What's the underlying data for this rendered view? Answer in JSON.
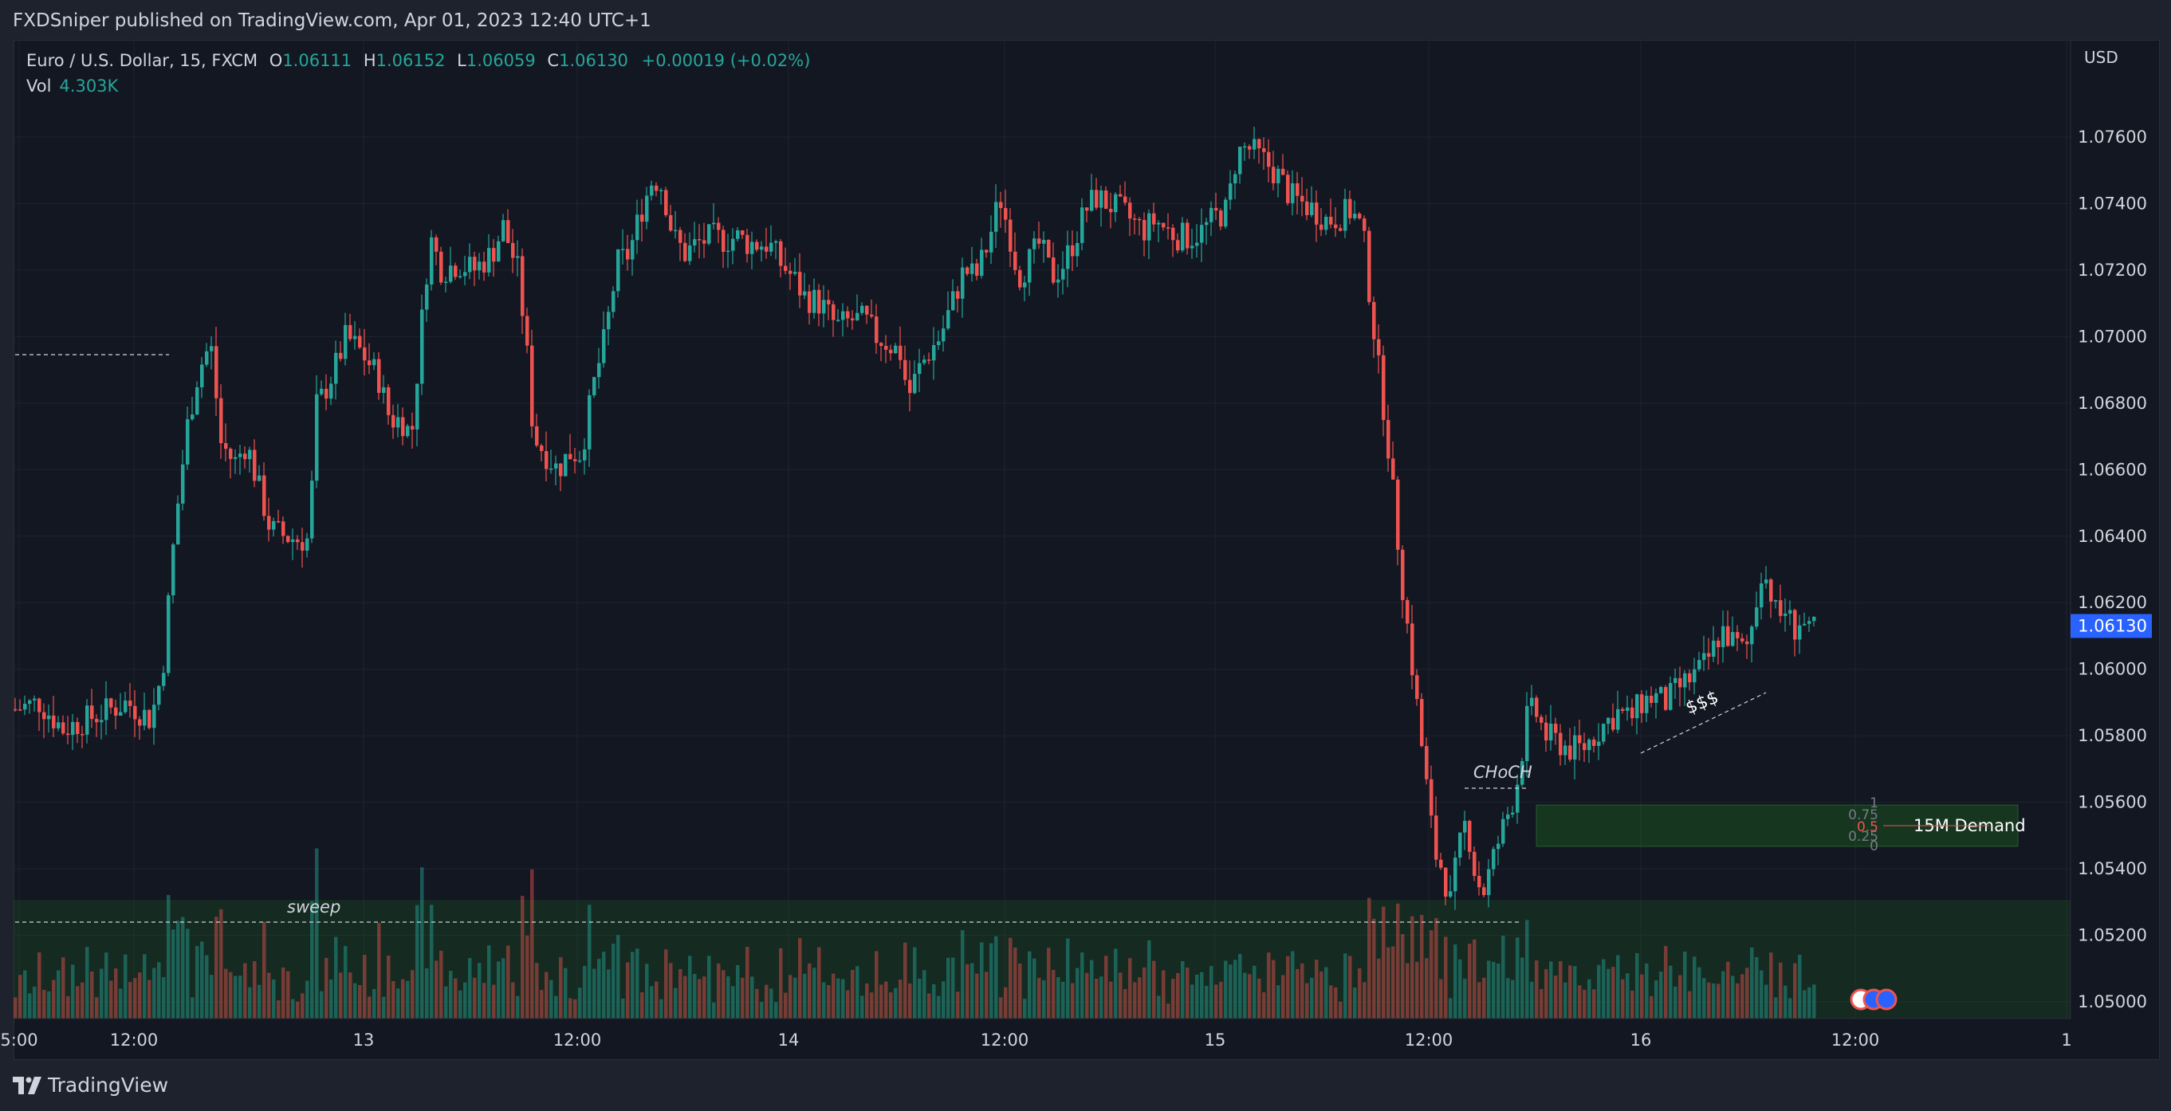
{
  "header": {
    "publish_text": "FXDSniper published on TradingView.com, Apr 01, 2023 12:40 UTC+1"
  },
  "legend": {
    "symbol": "Euro / U.S. Dollar, 15, FXCM",
    "open_label": "O",
    "open": "1.06111",
    "high_label": "H",
    "high": "1.06152",
    "low_label": "L",
    "low": "1.06059",
    "close_label": "C",
    "close": "1.06130",
    "change": "+0.00019 (+0.02%)",
    "vol_label": "Vol",
    "vol": "4.303K"
  },
  "price_axis": {
    "currency": "USD",
    "current_price": "1.06130"
  },
  "footer": {
    "logo_text": "TradingView"
  },
  "colors": {
    "background": "#131722",
    "up": "#26a69a",
    "down": "#ef5350",
    "price_tag": "#2962ff",
    "zone": "#1b5e20"
  },
  "chart_data": {
    "type": "candlestick",
    "symbol": "EUR/USD",
    "timeframe": "15",
    "ylim": [
      1.0492,
      1.0776
    ],
    "y_ticks": [
      "1.07600",
      "1.07400",
      "1.07200",
      "1.07000",
      "1.06800",
      "1.06600",
      "1.06400",
      "1.06200",
      "1.06000",
      "1.05800",
      "1.05600",
      "1.05400",
      "1.05200",
      "1.05000"
    ],
    "x_ticks": [
      "5:00",
      "12:00",
      "13",
      "12:00",
      "14",
      "12:00",
      "15",
      "12:00",
      "16",
      "12:00",
      "1"
    ],
    "price_path": [
      [
        0,
        1.0588
      ],
      [
        30,
        1.059
      ],
      [
        60,
        1.0582
      ],
      [
        100,
        1.0586
      ],
      [
        140,
        1.059
      ],
      [
        170,
        1.0585
      ],
      [
        185,
        1.06
      ],
      [
        200,
        1.0642
      ],
      [
        215,
        1.0672
      ],
      [
        230,
        1.069
      ],
      [
        245,
        1.0698
      ],
      [
        258,
        1.0668
      ],
      [
        275,
        1.0662
      ],
      [
        290,
        1.0668
      ],
      [
        305,
        1.0655
      ],
      [
        320,
        1.0642
      ],
      [
        338,
        1.064
      ],
      [
        355,
        1.0639
      ],
      [
        370,
        1.0639
      ],
      [
        375,
        1.0678
      ],
      [
        385,
        1.0682
      ],
      [
        400,
        1.069
      ],
      [
        415,
        1.07
      ],
      [
        435,
        1.0695
      ],
      [
        455,
        1.0688
      ],
      [
        470,
        1.0675
      ],
      [
        485,
        1.0675
      ],
      [
        497,
        1.067
      ],
      [
        510,
        1.0705
      ],
      [
        520,
        1.073
      ],
      [
        535,
        1.072
      ],
      [
        555,
        1.0722
      ],
      [
        575,
        1.072
      ],
      [
        598,
        1.0725
      ],
      [
        612,
        1.0733
      ],
      [
        630,
        1.072
      ],
      [
        640,
        1.07
      ],
      [
        650,
        1.067
      ],
      [
        665,
        1.0665
      ],
      [
        680,
        1.066
      ],
      [
        695,
        1.0665
      ],
      [
        710,
        1.0665
      ],
      [
        725,
        1.0685
      ],
      [
        740,
        1.07
      ],
      [
        755,
        1.0722
      ],
      [
        770,
        1.0725
      ],
      [
        785,
        1.0738
      ],
      [
        800,
        1.0748
      ],
      [
        812,
        1.0745
      ],
      [
        825,
        1.073
      ],
      [
        840,
        1.0725
      ],
      [
        855,
        1.0728
      ],
      [
        875,
        1.073
      ],
      [
        890,
        1.0729
      ],
      [
        905,
        1.073
      ],
      [
        920,
        1.0728
      ],
      [
        945,
        1.0728
      ],
      [
        960,
        1.0722
      ],
      [
        975,
        1.0718
      ],
      [
        990,
        1.0712
      ],
      [
        1010,
        1.071
      ],
      [
        1030,
        1.0703
      ],
      [
        1050,
        1.0705
      ],
      [
        1065,
        1.0705
      ],
      [
        1080,
        1.07
      ],
      [
        1095,
        1.0698
      ],
      [
        1110,
        1.0695
      ],
      [
        1120,
        1.0682
      ],
      [
        1133,
        1.069
      ],
      [
        1145,
        1.0695
      ],
      [
        1160,
        1.07
      ],
      [
        1175,
        1.071
      ],
      [
        1190,
        1.072
      ],
      [
        1205,
        1.0718
      ],
      [
        1220,
        1.0728
      ],
      [
        1235,
        1.0742
      ],
      [
        1248,
        1.073
      ],
      [
        1258,
        1.0718
      ],
      [
        1270,
        1.0722
      ],
      [
        1285,
        1.0728
      ],
      [
        1300,
        1.0718
      ],
      [
        1315,
        1.0722
      ],
      [
        1330,
        1.073
      ],
      [
        1342,
        1.0738
      ],
      [
        1355,
        1.0742
      ],
      [
        1370,
        1.074
      ],
      [
        1385,
        1.0738
      ],
      [
        1400,
        1.0735
      ],
      [
        1415,
        1.0732
      ],
      [
        1430,
        1.0735
      ],
      [
        1445,
        1.0732
      ],
      [
        1460,
        1.073
      ],
      [
        1475,
        1.073
      ],
      [
        1490,
        1.0732
      ],
      [
        1505,
        1.0736
      ],
      [
        1520,
        1.0738
      ],
      [
        1532,
        1.0755
      ],
      [
        1545,
        1.0757
      ],
      [
        1555,
        1.0755
      ],
      [
        1570,
        1.0752
      ],
      [
        1585,
        1.0748
      ],
      [
        1600,
        1.0742
      ],
      [
        1615,
        1.074
      ],
      [
        1630,
        1.0738
      ],
      [
        1645,
        1.0735
      ],
      [
        1660,
        1.0736
      ],
      [
        1675,
        1.0738
      ],
      [
        1690,
        1.0732
      ],
      [
        1700,
        1.071
      ],
      [
        1710,
        1.069
      ],
      [
        1720,
        1.0672
      ],
      [
        1730,
        1.0648
      ],
      [
        1740,
        1.0625
      ],
      [
        1750,
        1.0605
      ],
      [
        1760,
        1.0585
      ],
      [
        1770,
        1.0565
      ],
      [
        1780,
        1.0545
      ],
      [
        1790,
        1.054
      ],
      [
        1800,
        1.053
      ],
      [
        1810,
        1.0545
      ],
      [
        1820,
        1.0555
      ],
      [
        1830,
        1.054
      ],
      [
        1840,
        1.0532
      ],
      [
        1850,
        1.054
      ],
      [
        1860,
        1.0548
      ],
      [
        1870,
        1.0555
      ],
      [
        1880,
        1.0562
      ],
      [
        1887,
        1.057
      ],
      [
        1895,
        1.0585
      ],
      [
        1905,
        1.0588
      ],
      [
        1920,
        1.058
      ],
      [
        1935,
        1.0578
      ],
      [
        1950,
        1.0576
      ],
      [
        1965,
        1.0576
      ],
      [
        1980,
        1.058
      ],
      [
        1995,
        1.0584
      ],
      [
        2010,
        1.0587
      ],
      [
        2025,
        1.0585
      ],
      [
        2040,
        1.059
      ],
      [
        2055,
        1.0592
      ],
      [
        2070,
        1.059
      ],
      [
        2085,
        1.0594
      ],
      [
        2100,
        1.0597
      ],
      [
        2115,
        1.06
      ],
      [
        2128,
        1.0605
      ],
      [
        2140,
        1.0612
      ],
      [
        2155,
        1.0608
      ],
      [
        2170,
        1.0605
      ],
      [
        2180,
        1.0615
      ],
      [
        2190,
        1.063
      ],
      [
        2200,
        1.0625
      ],
      [
        2210,
        1.0615
      ],
      [
        2220,
        1.0618
      ],
      [
        2230,
        1.0612
      ],
      [
        2240,
        1.0615
      ],
      [
        2250,
        1.061
      ],
      [
        2258,
        1.0613
      ]
    ],
    "annotations": [
      "sweep",
      "CHoCH",
      "$$$",
      "15M Demand",
      "1",
      "0.75",
      "0.5",
      "0.25",
      "0"
    ]
  }
}
